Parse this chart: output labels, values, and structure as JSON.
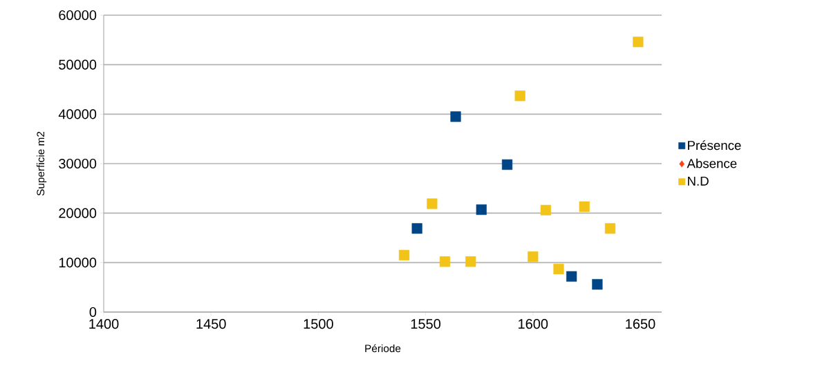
{
  "chart_data": {
    "type": "scatter",
    "xlabel": "Période",
    "ylabel": "Superficie m2",
    "xlim": [
      1400,
      1660
    ],
    "ylim": [
      0,
      60000
    ],
    "xticks": [
      1400,
      1450,
      1500,
      1550,
      1600,
      1650
    ],
    "yticks": [
      0,
      10000,
      20000,
      30000,
      40000,
      50000,
      60000
    ],
    "grid": "y",
    "legend": "right",
    "series": [
      {
        "name": "Présence",
        "color": "#004586",
        "marker": "square",
        "x": [
          1564,
          1588,
          1576,
          1546,
          1618,
          1630
        ],
        "values": [
          39500,
          29800,
          20700,
          16900,
          7200,
          5600
        ]
      },
      {
        "name": "Absence",
        "color": "#ff420e",
        "marker": "diamond"
      },
      {
        "name": "N.D",
        "color": "#f2c318",
        "marker": "square",
        "x": [
          1649,
          1594,
          1553,
          1606,
          1624,
          1636,
          1540,
          1559,
          1571,
          1600,
          1612
        ],
        "values": [
          54600,
          43700,
          21900,
          20600,
          21300,
          16900,
          11500,
          10200,
          10200,
          11200,
          8700
        ]
      }
    ]
  }
}
